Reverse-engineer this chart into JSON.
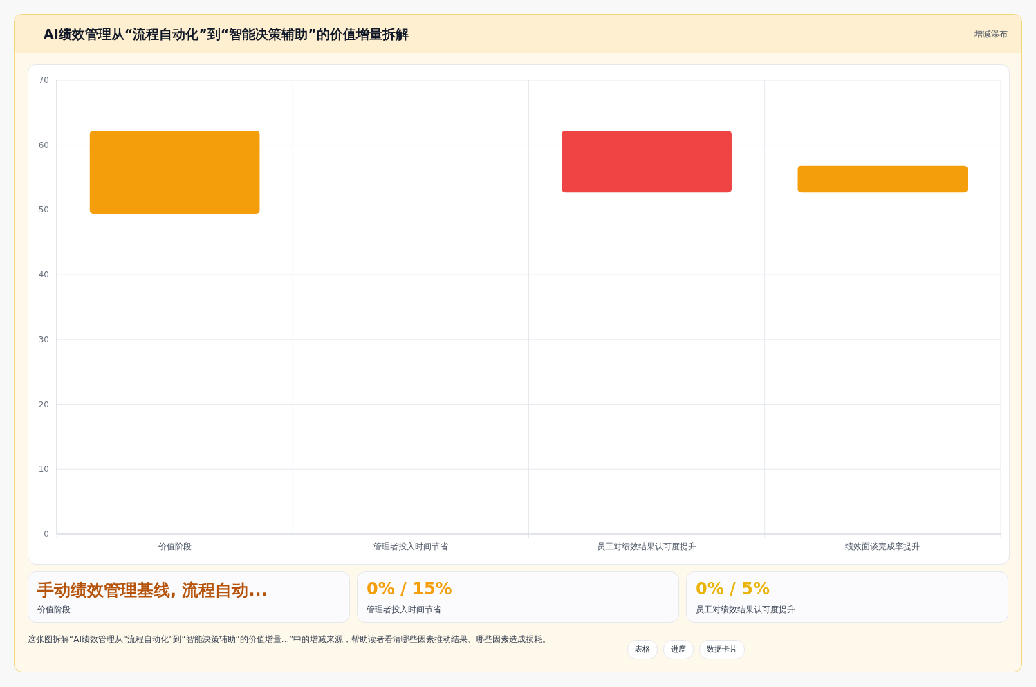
{
  "chart_data": [
    {
      "type": "bar",
      "title": "AI绩效管理从“流程自动化”到“智能决策辅助”的价值增量拆解",
      "subtitle": "增减瀑布",
      "categories": [
        "价值阶段",
        "管理者投入时间节省",
        "员工对绩效结果认可度提升",
        "绩效面谈完成率提升"
      ],
      "base": [
        49.4,
        null,
        62.2,
        52.7
      ],
      "values": [
        12.8,
        null,
        -9.5,
        4.1
      ],
      "colors": [
        "#f59e0b",
        null,
        "#ef4444",
        "#f59e0b"
      ],
      "ylim": [
        0,
        70
      ],
      "yticks": [
        0,
        10,
        20,
        30,
        40,
        50,
        60,
        70
      ],
      "grid": true,
      "annotations": [
        "这张图拆解“AI绩效管理从“流程自动化”到“智能决策辅助”的价值增量...”中的增减来源，帮助读者看清哪些因素推动结果、哪些因素造成损耗。",
        "表格",
        "进度",
        "数据卡片"
      ]
    },
    {
      "type": "other",
      "annotations": [
        "手动绩效管理基线, 流程自动...",
        "价值阶段",
        "0% / 15%",
        "管理者投入时间节省",
        "0% / 5%",
        "员工对绩效结果认可度提升"
      ]
    }
  ]
}
